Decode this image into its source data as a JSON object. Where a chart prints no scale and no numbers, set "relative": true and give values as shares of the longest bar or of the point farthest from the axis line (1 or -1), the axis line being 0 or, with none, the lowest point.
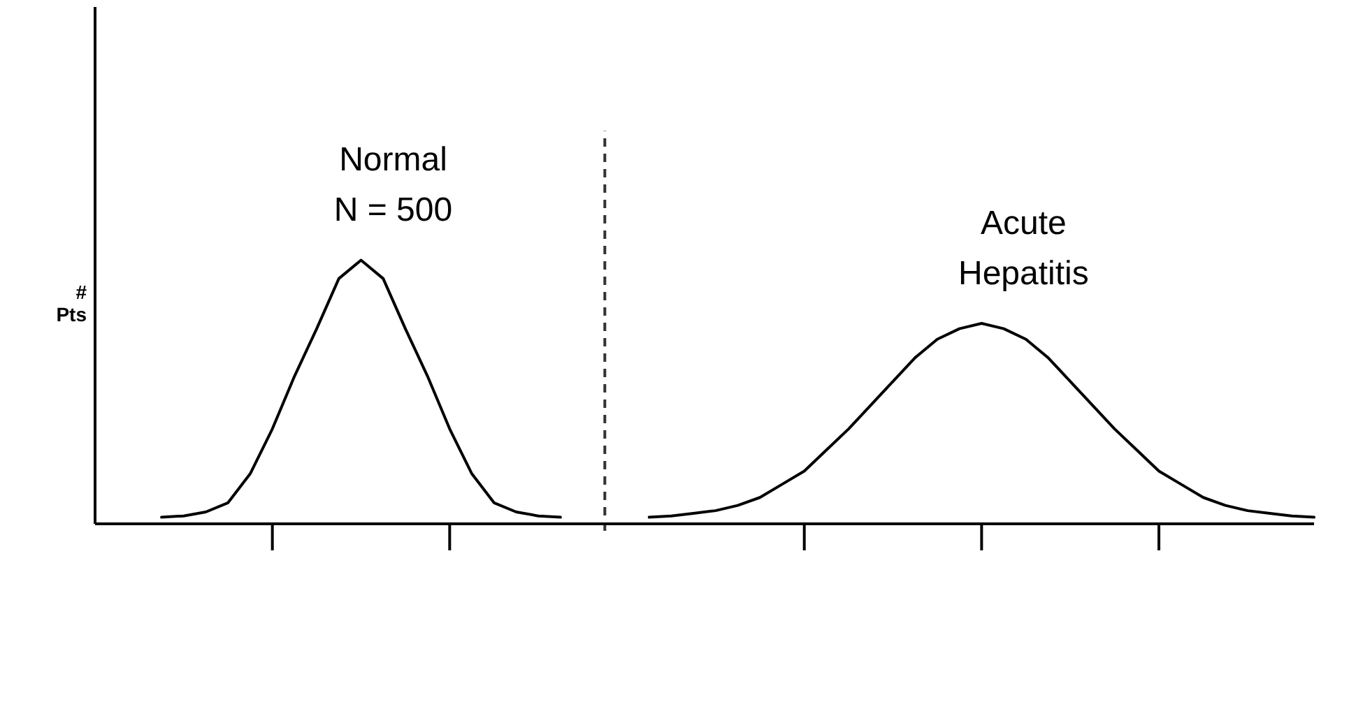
{
  "chart_data": {
    "type": "line",
    "relative": true,
    "ylabel": "# Pts",
    "marker": "none",
    "line_style": "solid",
    "categories": [
      null,
      null,
      null,
      null,
      null,
      null,
      null,
      null,
      null,
      null,
      null,
      null,
      null,
      null,
      null,
      null,
      null,
      null,
      null,
      null,
      null,
      null,
      null,
      null,
      null,
      null,
      null,
      null,
      null,
      null,
      null,
      null,
      null,
      null,
      null,
      null,
      null,
      null,
      null,
      null,
      null,
      null,
      null,
      null,
      null,
      null,
      null,
      null,
      null,
      null,
      null,
      null,
      null,
      null,
      null,
      null
    ],
    "series": [
      {
        "name": "Normal N = 500",
        "color": "#000000",
        "values": [
          null,
          null,
          null,
          0.025,
          0.03,
          0.045,
          0.08,
          0.19,
          0.36,
          0.56,
          0.74,
          0.93,
          1,
          0.93,
          0.74,
          0.56,
          0.36,
          0.19,
          0.08,
          0.045,
          0.03,
          0.025,
          null,
          null,
          null,
          null,
          null,
          null,
          null,
          null,
          null,
          null,
          null,
          null,
          null,
          null,
          null,
          null,
          null,
          null,
          null,
          null,
          null,
          null,
          null,
          null,
          null,
          null,
          null,
          null,
          null,
          null,
          null,
          null,
          null,
          null
        ]
      },
      {
        "name": "Acute Hepatitis",
        "color": "#000000",
        "values": [
          null,
          null,
          null,
          null,
          null,
          null,
          null,
          null,
          null,
          null,
          null,
          null,
          null,
          null,
          null,
          null,
          null,
          null,
          null,
          null,
          null,
          null,
          null,
          null,
          null,
          0.025,
          0.03,
          0.04,
          0.05,
          0.07,
          0.1,
          0.15,
          0.2,
          0.28,
          0.36,
          0.45,
          0.54,
          0.63,
          0.7,
          0.74,
          0.76,
          0.74,
          0.7,
          0.63,
          0.54,
          0.45,
          0.36,
          0.28,
          0.2,
          0.15,
          0.1,
          0.07,
          0.05,
          0.04,
          0.03,
          0.025
        ]
      }
    ]
  }
}
